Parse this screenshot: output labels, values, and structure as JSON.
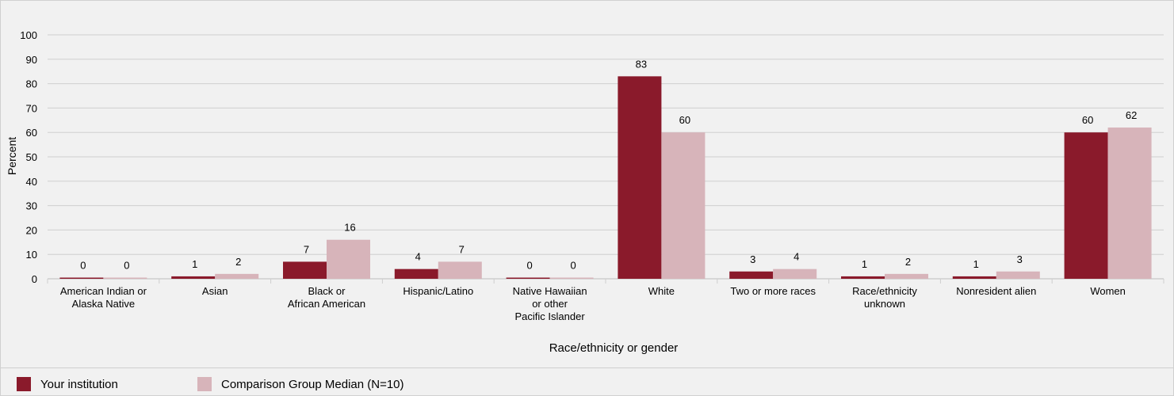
{
  "chart_data": {
    "type": "bar",
    "xlabel": "Race/ethnicity or gender",
    "ylabel": "Percent",
    "ylim": [
      0,
      100
    ],
    "yticks": [
      0,
      10,
      20,
      30,
      40,
      50,
      60,
      70,
      80,
      90,
      100
    ],
    "grid": true,
    "legend_position": "bottom-left",
    "categories": [
      [
        "American Indian or",
        "Alaska Native"
      ],
      [
        "Asian"
      ],
      [
        "Black or",
        "African American"
      ],
      [
        "Hispanic/Latino"
      ],
      [
        "Native Hawaiian",
        "or other",
        "Pacific Islander"
      ],
      [
        "White"
      ],
      [
        "Two or more races"
      ],
      [
        "Race/ethnicity",
        "unknown"
      ],
      [
        "Nonresident alien"
      ],
      [
        "Women"
      ]
    ],
    "series": [
      {
        "name": "Your institution",
        "color": "#8a1a2b",
        "values": [
          0,
          1,
          7,
          4,
          0,
          83,
          3,
          1,
          1,
          60
        ]
      },
      {
        "name": "Comparison Group Median (N=10)",
        "color": "#d7b4ba",
        "values": [
          0,
          2,
          16,
          7,
          0,
          60,
          4,
          2,
          3,
          62
        ]
      }
    ]
  }
}
